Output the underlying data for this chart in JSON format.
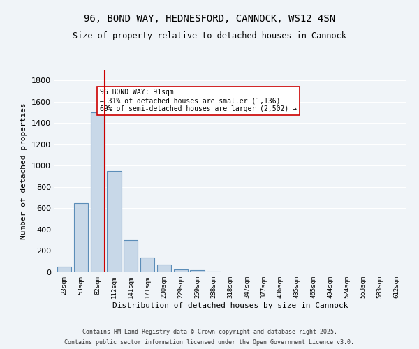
{
  "title_line1": "96, BOND WAY, HEDNESFORD, CANNOCK, WS12 4SN",
  "title_line2": "Size of property relative to detached houses in Cannock",
  "xlabel": "Distribution of detached houses by size in Cannock",
  "ylabel": "Number of detached properties",
  "categories": [
    "23sqm",
    "53sqm",
    "82sqm",
    "112sqm",
    "141sqm",
    "171sqm",
    "200sqm",
    "229sqm",
    "259sqm",
    "288sqm",
    "318sqm",
    "347sqm",
    "377sqm",
    "406sqm",
    "435sqm",
    "465sqm",
    "494sqm",
    "524sqm",
    "553sqm",
    "583sqm",
    "612sqm"
  ],
  "values": [
    50,
    650,
    1500,
    950,
    300,
    140,
    70,
    25,
    20,
    5,
    3,
    2,
    2,
    2,
    1,
    1,
    1,
    1,
    1,
    1,
    1
  ],
  "bar_color": "#c8d8e8",
  "bar_edge_color": "#5b8db8",
  "red_line_index": 2,
  "annotation_text": "96 BOND WAY: 91sqm\n← 31% of detached houses are smaller (1,136)\n69% of semi-detached houses are larger (2,502) →",
  "annotation_box_color": "#ffffff",
  "annotation_box_edge": "#cc0000",
  "red_line_color": "#cc0000",
  "ylim": [
    0,
    1900
  ],
  "yticks": [
    0,
    200,
    400,
    600,
    800,
    1000,
    1200,
    1400,
    1600,
    1800
  ],
  "background_color": "#f0f4f8",
  "grid_color": "#ffffff",
  "footer_line1": "Contains HM Land Registry data © Crown copyright and database right 2025.",
  "footer_line2": "Contains public sector information licensed under the Open Government Licence v3.0."
}
